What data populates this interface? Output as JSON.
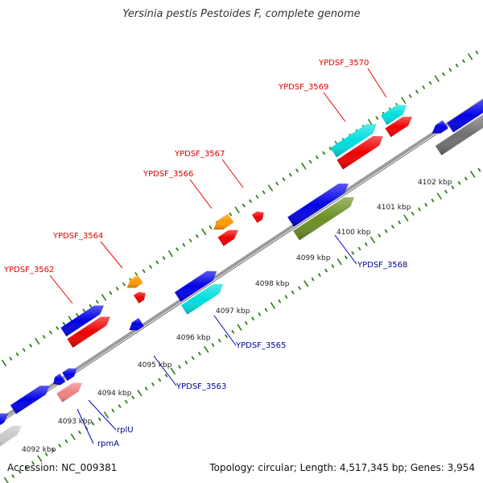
{
  "title": "Yersinia pestis Pestoides F, complete genome",
  "footer": {
    "accession": "Accession: NC_009381",
    "summary": "Topology: circular; Length: 4,517,345 bp; Genes: 3,954"
  },
  "colors": {
    "backbone": "#8c8c8c",
    "ticks_major": "#2e7d14",
    "ticks_minor": "#2e7d14",
    "label_upper": "#dd0000",
    "label_lower": "#000099",
    "leader_upper": "#ee0000",
    "leader_lower": "#0000cc"
  },
  "scale_labels": [
    "4092 kbp",
    "4093 kbp",
    "4094 kbp",
    "4095 kbp",
    "4096 kbp",
    "4097 kbp",
    "4098 kbp",
    "4099 kbp",
    "4100 kbp",
    "4101 kbp",
    "4102 kbp"
  ],
  "upper_gene_labels": [
    "YPDSF_3562",
    "YPDSF_3564",
    "YPDSF_3566",
    "YPDSF_3567",
    "YPDSF_3569",
    "YPDSF_3570"
  ],
  "lower_gene_labels": [
    "rpmA",
    "rplU",
    "YPDSF_3563",
    "YPDSF_3565",
    "YPDSF_3568"
  ],
  "feature_colors": {
    "cds_blue": "#0000e6",
    "cds_red": "#ee0000",
    "cds_orange": "#ff9900",
    "cds_cyan": "#00dddd",
    "cds_olive": "#6b8e23",
    "cds_pink": "#f08080",
    "cds_gray": "#707070",
    "cds_lightgray": "#c8c8c8"
  }
}
